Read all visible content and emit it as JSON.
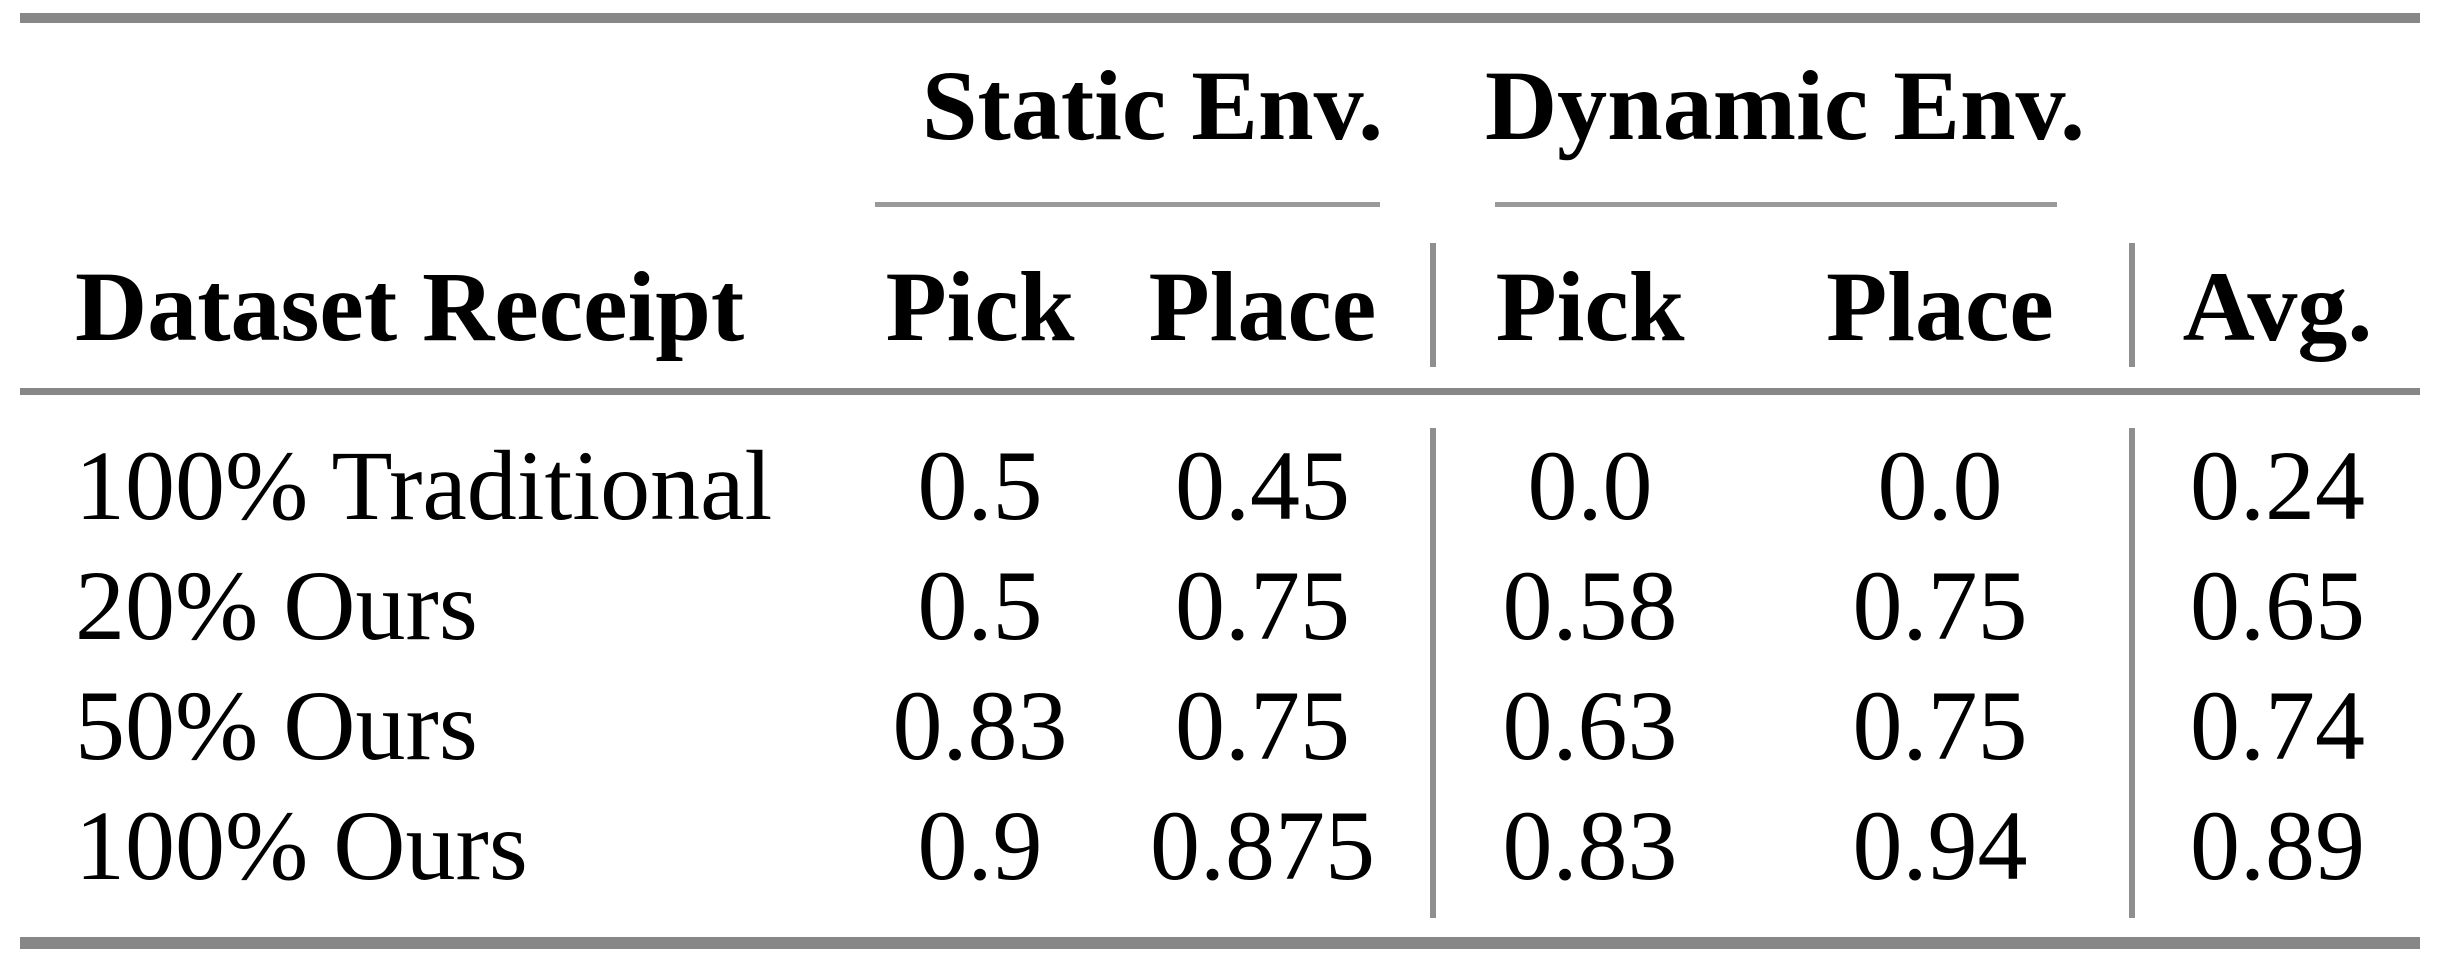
{
  "colors": {
    "background": "#ffffff",
    "text": "#000000",
    "thick_rule": "#878787",
    "thin_rule": "#9a9a9a",
    "vertical_rule": "#8f8f8f"
  },
  "table": {
    "group_headers": [
      {
        "label": "Static Env."
      },
      {
        "label": "Dynamic Env."
      }
    ],
    "column_headers": [
      "Dataset Receipt",
      "Pick",
      "Place",
      "Pick",
      "Place",
      "Avg."
    ],
    "rows": [
      {
        "cells": [
          "100% Traditional",
          "0.5",
          "0.45",
          "0.0",
          "0.0",
          "0.24"
        ]
      },
      {
        "cells": [
          "20% Ours",
          "0.5",
          "0.75",
          "0.58",
          "0.75",
          "0.65"
        ]
      },
      {
        "cells": [
          "50% Ours",
          "0.83",
          "0.75",
          "0.63",
          "0.75",
          "0.74"
        ]
      },
      {
        "cells": [
          "100% Ours",
          "0.9",
          "0.875",
          "0.83",
          "0.94",
          "0.89"
        ]
      }
    ]
  },
  "chart_data": {
    "type": "table",
    "title": "",
    "column_groups": [
      "Static Env.",
      "Dynamic Env."
    ],
    "columns": [
      "Dataset Receipt",
      "Static Pick",
      "Static Place",
      "Dynamic Pick",
      "Dynamic Place",
      "Avg."
    ],
    "categories": [
      "100% Traditional",
      "20% Ours",
      "50% Ours",
      "100% Ours"
    ],
    "series": [
      {
        "name": "Static Pick",
        "values": [
          0.5,
          0.5,
          0.83,
          0.9
        ]
      },
      {
        "name": "Static Place",
        "values": [
          0.45,
          0.75,
          0.75,
          0.875
        ]
      },
      {
        "name": "Dynamic Pick",
        "values": [
          0.0,
          0.58,
          0.63,
          0.83
        ]
      },
      {
        "name": "Dynamic Place",
        "values": [
          0.0,
          0.75,
          0.75,
          0.94
        ]
      },
      {
        "name": "Avg.",
        "values": [
          0.24,
          0.65,
          0.74,
          0.89
        ]
      }
    ]
  }
}
